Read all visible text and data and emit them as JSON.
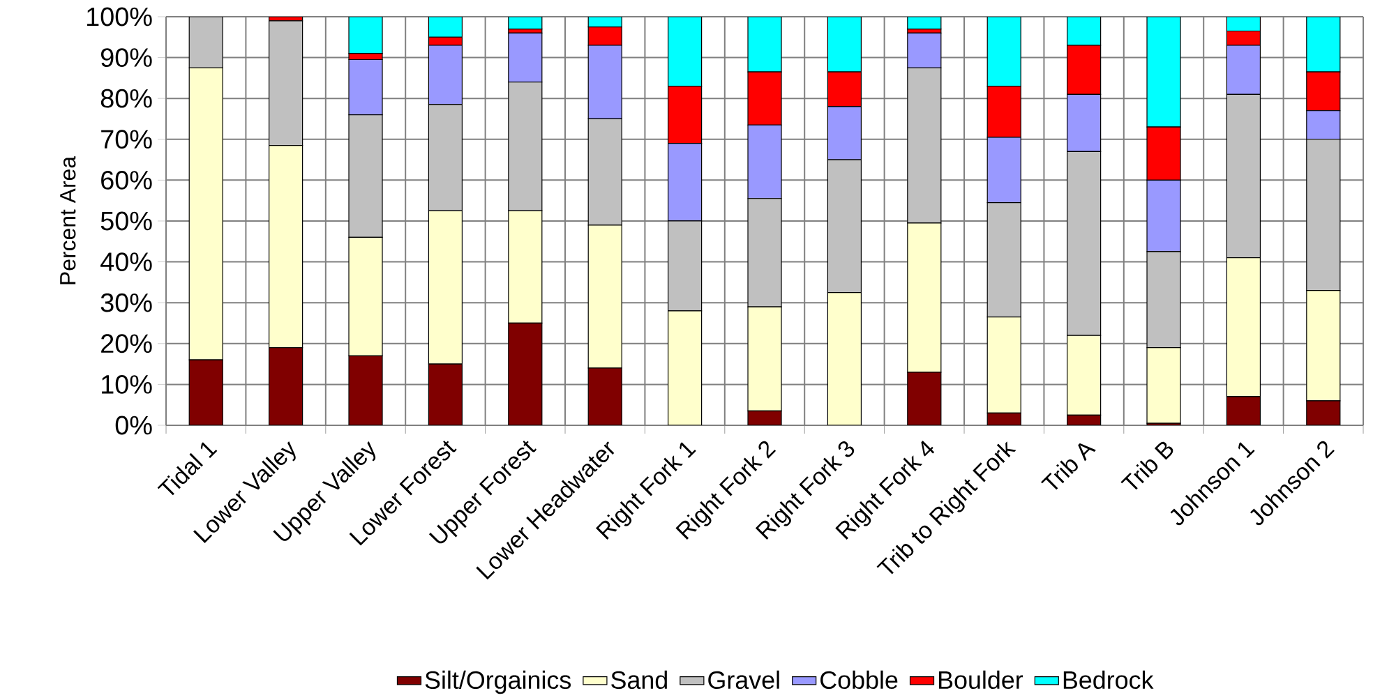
{
  "chart_data": {
    "type": "bar",
    "stacked": true,
    "ylabel": "Percent Area",
    "categories": [
      "Tidal 1",
      "Lower Valley",
      "Upper Valley",
      "Lower Forest",
      "Upper Forest",
      "Lower Headwater",
      "Right Fork 1",
      "Right Fork 2",
      "Right Fork 3",
      "Right Fork 4",
      "Trib to Right Fork",
      "Trib A",
      "Trib B",
      "Johnson 1",
      "Johnson 2"
    ],
    "series": [
      {
        "name": "Silt/Orgainics",
        "color": "#800000",
        "values": [
          16,
          19,
          17,
          15,
          25,
          14,
          0,
          3.5,
          0,
          13,
          3,
          2.5,
          0.5,
          7,
          6
        ]
      },
      {
        "name": "Sand",
        "color": "#ffffcc",
        "values": [
          71.5,
          49.5,
          29,
          37.5,
          27.5,
          35,
          28,
          25.5,
          32.5,
          36.5,
          23.5,
          19.5,
          18.5,
          34,
          27
        ]
      },
      {
        "name": "Gravel",
        "color": "#c0c0c0",
        "values": [
          12.5,
          30.5,
          30,
          26,
          31.5,
          26,
          22,
          26.5,
          32.5,
          38,
          28,
          45,
          23.5,
          40,
          37
        ]
      },
      {
        "name": "Cobble",
        "color": "#9999ff",
        "values": [
          0,
          0,
          13.5,
          14.5,
          12,
          18,
          19,
          18,
          13,
          8.5,
          16,
          14,
          17.5,
          12,
          7
        ]
      },
      {
        "name": "Boulder",
        "color": "#ff0000",
        "values": [
          0,
          1,
          1.5,
          2,
          1,
          4.5,
          14,
          13,
          8.5,
          1,
          12.5,
          12,
          13,
          3.5,
          9.5
        ]
      },
      {
        "name": "Bedrock",
        "color": "#00ffff",
        "values": [
          0,
          0,
          9,
          5,
          3,
          2.5,
          17,
          13.5,
          13.5,
          3,
          17,
          7,
          27,
          3.5,
          13.5
        ]
      }
    ],
    "ylim": [
      0,
      100
    ],
    "yticks": [
      {
        "value": 0,
        "label": "0%"
      },
      {
        "value": 10,
        "label": "10%"
      },
      {
        "value": 20,
        "label": "20%"
      },
      {
        "value": 30,
        "label": "30%"
      },
      {
        "value": 40,
        "label": "40%"
      },
      {
        "value": 50,
        "label": "50%"
      },
      {
        "value": 60,
        "label": "60%"
      },
      {
        "value": 70,
        "label": "70%"
      },
      {
        "value": 80,
        "label": "80%"
      },
      {
        "value": 90,
        "label": "90%"
      },
      {
        "value": 100,
        "label": "100%"
      }
    ],
    "grid": true,
    "legend": "bottom"
  }
}
